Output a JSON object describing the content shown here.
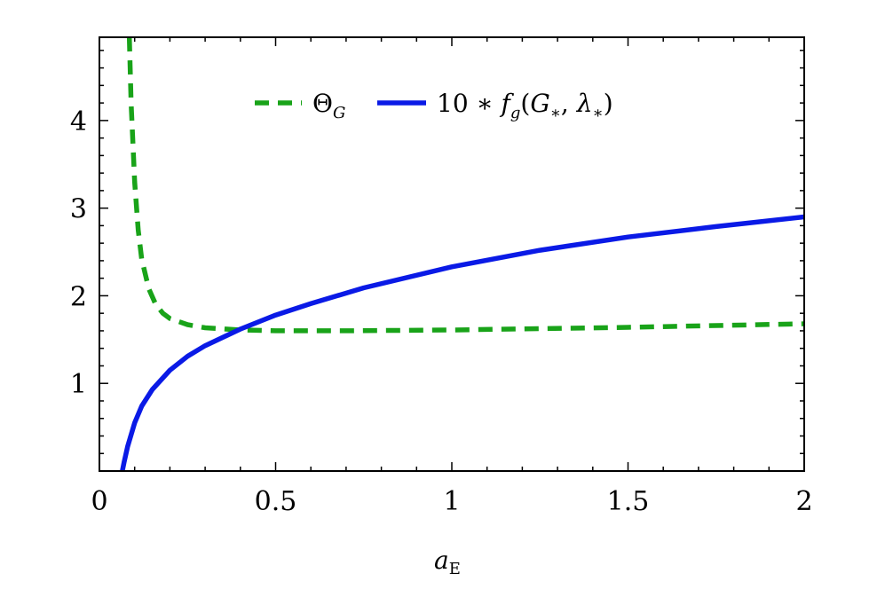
{
  "chart_data": {
    "type": "line",
    "xlabel": "a",
    "xlabel_sub": "E",
    "ylabel": "",
    "xlim": [
      0,
      2
    ],
    "ylim": [
      0,
      4.95
    ],
    "x_ticks": [
      0,
      0.5,
      1,
      1.5,
      2
    ],
    "x_tick_labels": [
      "0",
      "0.5",
      "1",
      "1.5",
      "2"
    ],
    "y_ticks": [
      1,
      2,
      3,
      4
    ],
    "y_tick_labels": [
      "1",
      "2",
      "3",
      "4"
    ],
    "grid": false,
    "legend_position": "top-center",
    "series": [
      {
        "name": "Θ_G",
        "legend_main": "Θ",
        "legend_sub": "G",
        "color": "#19a319",
        "dash": "dashed",
        "points": [
          [
            0.085,
            4.95
          ],
          [
            0.09,
            4.2
          ],
          [
            0.1,
            3.3
          ],
          [
            0.11,
            2.75
          ],
          [
            0.12,
            2.42
          ],
          [
            0.14,
            2.08
          ],
          [
            0.16,
            1.9
          ],
          [
            0.18,
            1.8
          ],
          [
            0.2,
            1.74
          ],
          [
            0.25,
            1.67
          ],
          [
            0.3,
            1.635
          ],
          [
            0.4,
            1.61
          ],
          [
            0.5,
            1.6
          ],
          [
            0.7,
            1.6
          ],
          [
            1.0,
            1.61
          ],
          [
            1.25,
            1.625
          ],
          [
            1.5,
            1.64
          ],
          [
            1.75,
            1.66
          ],
          [
            2.0,
            1.68
          ]
        ]
      },
      {
        "name": "10 * f_g(G_*, λ_*)",
        "legend_prefix": "10 ∗ ",
        "legend_f": "f",
        "legend_fsub": "g",
        "legend_args_open": "(",
        "legend_G": "G",
        "legend_star1": "∗",
        "legend_comma": ", ",
        "legend_lambda": "λ",
        "legend_star2": "∗",
        "legend_args_close": ")",
        "color": "#0a1ae6",
        "dash": "solid",
        "points": [
          [
            0.065,
            0.0
          ],
          [
            0.07,
            0.1
          ],
          [
            0.08,
            0.28
          ],
          [
            0.1,
            0.55
          ],
          [
            0.12,
            0.74
          ],
          [
            0.15,
            0.93
          ],
          [
            0.2,
            1.15
          ],
          [
            0.25,
            1.31
          ],
          [
            0.3,
            1.43
          ],
          [
            0.4,
            1.62
          ],
          [
            0.5,
            1.78
          ],
          [
            0.6,
            1.91
          ],
          [
            0.75,
            2.09
          ],
          [
            1.0,
            2.33
          ],
          [
            1.25,
            2.52
          ],
          [
            1.5,
            2.67
          ],
          [
            1.75,
            2.79
          ],
          [
            2.0,
            2.9
          ]
        ]
      }
    ]
  }
}
